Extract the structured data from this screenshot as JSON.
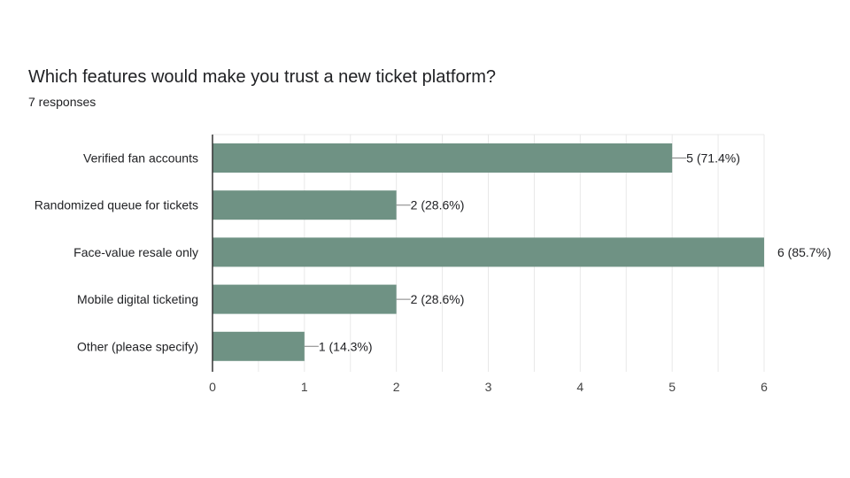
{
  "question": {
    "title": "Which features would make you trust a new ticket platform?",
    "responses": "7 responses"
  },
  "colors": {
    "bar": "#6f9284",
    "grid": "#e8e8e8",
    "axis": "#333333",
    "leader": "#808080"
  },
  "chart_data": {
    "type": "bar",
    "orientation": "horizontal",
    "categories": [
      "Verified fan accounts",
      "Randomized queue for tickets",
      "Face-value resale only",
      "Mobile digital ticketing",
      "Other (please specify)"
    ],
    "values": [
      5,
      2,
      6,
      2,
      1
    ],
    "data_labels": [
      "5 (71.4%)",
      "2 (28.6%)",
      "6 (85.7%)",
      "2 (28.6%)",
      "1 (14.3%)"
    ],
    "xlim": [
      0,
      6
    ],
    "x_ticks": [
      "0",
      "1",
      "2",
      "3",
      "4",
      "5",
      "6"
    ],
    "grid": true,
    "legend": "none"
  }
}
